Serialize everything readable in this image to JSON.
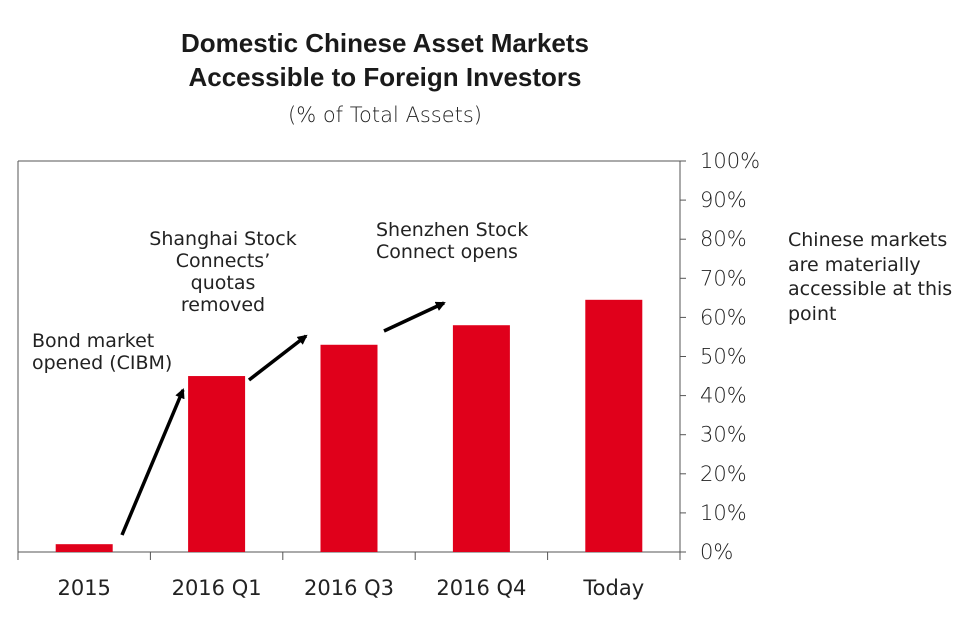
{
  "title_line1": "Domestic Chinese Asset Markets",
  "title_line2": "Accessible to Foreign Investors",
  "subtitle": "(% of Total Assets)",
  "side_note": "Chinese markets are materially accessible at this point",
  "annotations": {
    "bond": "Bond market opened (CIBM)",
    "shanghai": "Shanghai Stock Connects’ quotas removed",
    "shenzhen": "Shenzhen Stock Connect opens"
  },
  "colors": {
    "bar": "#E0001B",
    "axis": "#555555",
    "arrow": "#000000"
  },
  "chart_data": {
    "type": "bar",
    "categories": [
      "2015",
      "2016 Q1",
      "2016 Q3",
      "2016 Q4",
      "Today"
    ],
    "values": [
      2,
      45,
      53,
      58,
      64.5
    ],
    "ylim": [
      0,
      100
    ],
    "yticks": [
      "0%",
      "10%",
      "20%",
      "30%",
      "40%",
      "50%",
      "60%",
      "70%",
      "80%",
      "90%",
      "100%"
    ],
    "y_axis_side": "right",
    "grid": false,
    "legend": "none"
  }
}
